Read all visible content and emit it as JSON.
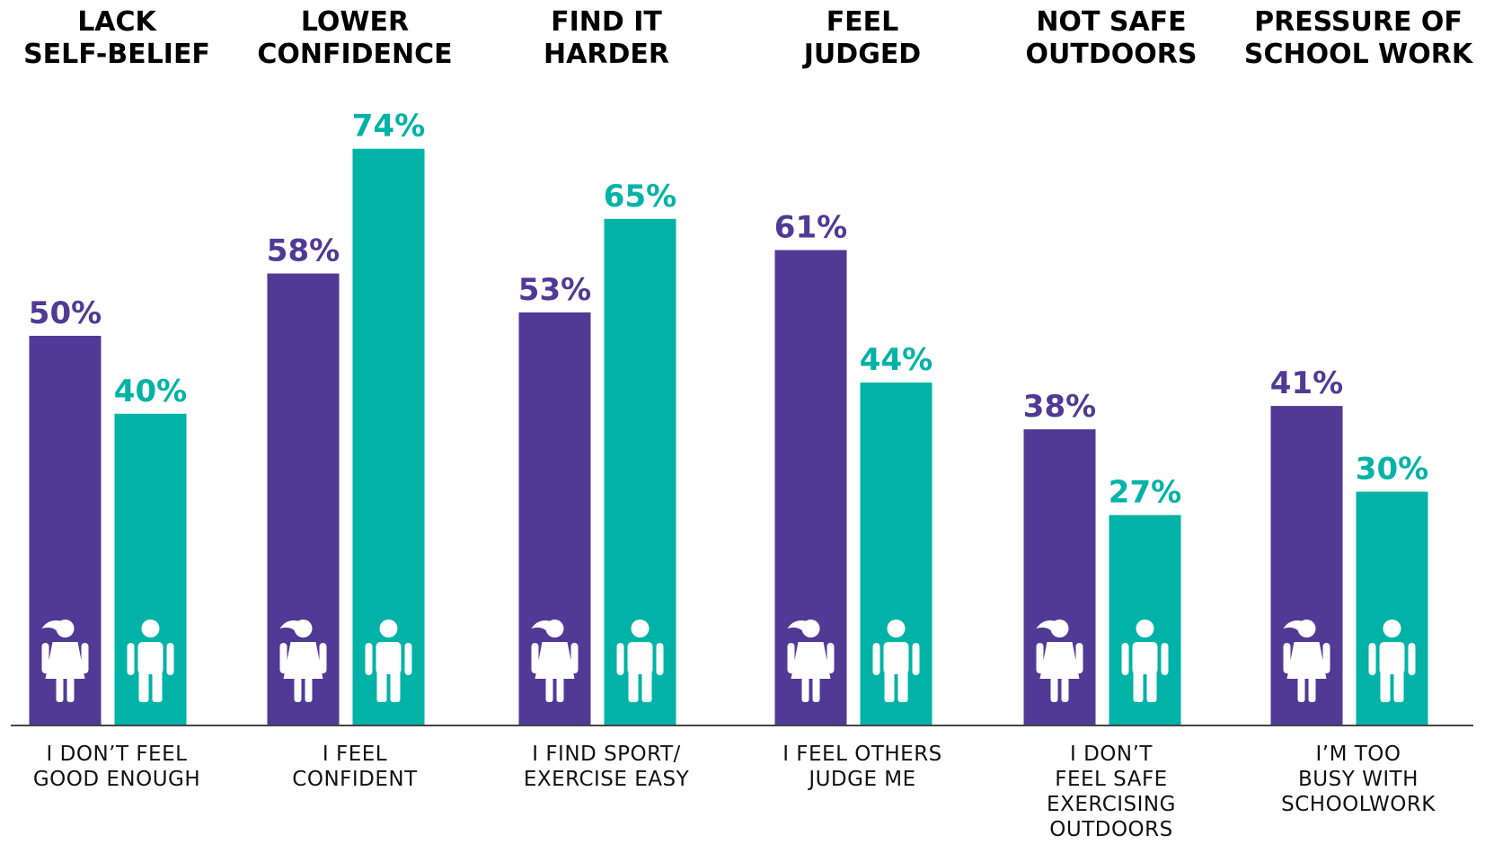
{
  "chart_data": {
    "type": "bar",
    "headings": [
      [
        "LACK",
        "SELF-BELIEF"
      ],
      [
        "LOWER",
        "CONFIDENCE"
      ],
      [
        "FIND IT",
        "HARDER"
      ],
      [
        "FEEL",
        "JUDGED"
      ],
      [
        "NOT SAFE",
        "OUTDOORS"
      ],
      [
        "PRESSURE OF",
        "SCHOOL WORK"
      ]
    ],
    "categories": [
      [
        "I DON’T FEEL",
        "GOOD ENOUGH"
      ],
      [
        "I FEEL",
        "CONFIDENT"
      ],
      [
        "I FIND SPORT/",
        "EXERCISE EASY"
      ],
      [
        "I FEEL OTHERS",
        "JUDGE ME"
      ],
      [
        "I DON’T",
        "FEEL SAFE",
        "EXERCISING",
        "OUTDOORS"
      ],
      [
        "I’M TOO",
        "BUSY WITH",
        "SCHOOLWORK"
      ]
    ],
    "series": [
      {
        "icon": "girl-icon",
        "color": "#513a95",
        "values": [
          50,
          58,
          53,
          61,
          38,
          41
        ]
      },
      {
        "icon": "boy-icon",
        "color": "#00b3a6",
        "values": [
          40,
          74,
          65,
          44,
          27,
          30
        ]
      }
    ],
    "value_suffix": "%",
    "ylim": [
      0,
      100
    ],
    "grid": false,
    "legend": "none"
  }
}
